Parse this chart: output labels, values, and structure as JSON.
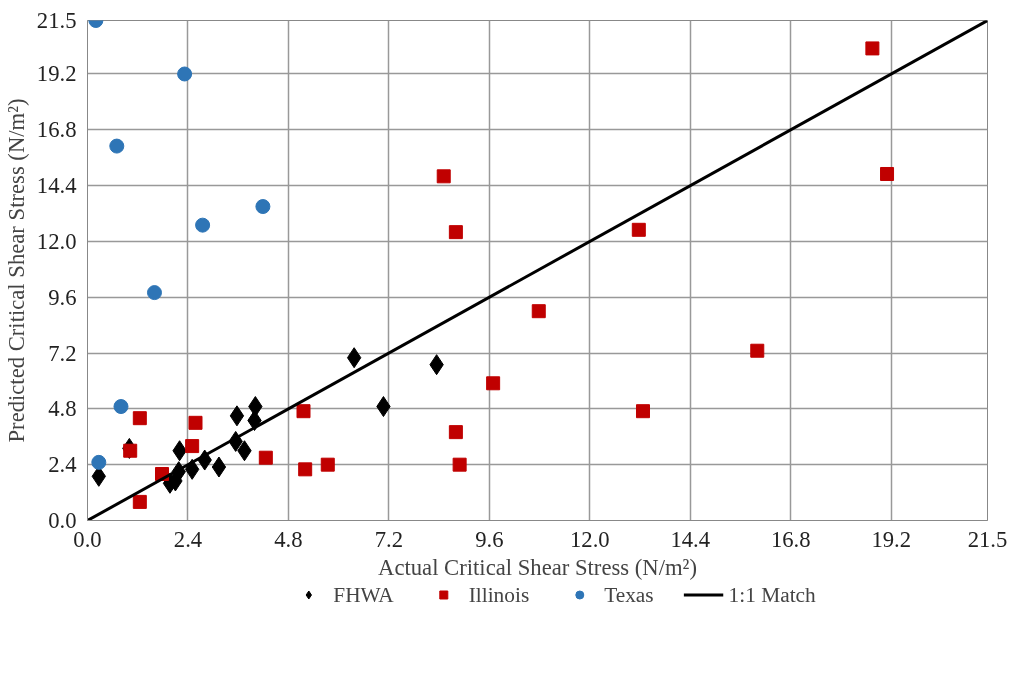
{
  "chart_data": {
    "type": "scatter",
    "xlabel": "Actual Critical Shear Stress (N/m²)",
    "ylabel": "Predicted Critical Shear Stress (N/m²)",
    "xlim": [
      0,
      21.5
    ],
    "ylim": [
      0,
      21.5
    ],
    "xticks": [
      {
        "value": 0,
        "label": "0.0"
      },
      2.4,
      4.8,
      7.2,
      9.6,
      {
        "value": 12,
        "label": "12.0"
      },
      14.4,
      16.8,
      19.2,
      21.5
    ],
    "yticks": [
      {
        "value": 0,
        "label": "0.0"
      },
      2.4,
      4.8,
      7.2,
      9.6,
      {
        "value": 12,
        "label": "12.0"
      },
      14.4,
      16.8,
      19.2,
      21.5
    ],
    "grid": true,
    "legend": "bottom",
    "series": [
      {
        "name": "FHWA",
        "marker": "diamond",
        "color": "#000000",
        "x": [
          0.27,
          1.0,
          2.2,
          1.97,
          2.1,
          2.18,
          2.5,
          2.8,
          3.14,
          3.57,
          4.01,
          3.99,
          3.54,
          3.75,
          6.37,
          7.07,
          8.34
        ],
        "values": [
          1.9,
          3.1,
          3.0,
          1.6,
          1.7,
          2.1,
          2.2,
          2.6,
          2.3,
          4.5,
          4.9,
          4.3,
          3.4,
          3.0,
          7.0,
          4.9,
          6.7
        ]
      },
      {
        "name": "Illinois",
        "marker": "square",
        "color": "#c00000",
        "x": [
          1.25,
          1.02,
          1.25,
          1.78,
          2.5,
          2.58,
          4.26,
          5.16,
          5.2,
          5.74,
          8.51,
          8.8,
          8.8,
          8.89,
          9.69,
          10.78,
          13.17,
          13.27,
          16.0,
          18.75,
          19.1
        ],
        "values": [
          4.4,
          3.0,
          0.8,
          2.0,
          3.2,
          4.2,
          2.7,
          4.7,
          2.2,
          2.4,
          14.8,
          12.4,
          3.8,
          2.4,
          5.9,
          9.0,
          12.5,
          4.7,
          7.3,
          20.3,
          14.9
        ]
      },
      {
        "name": "Texas",
        "marker": "circle",
        "color": "#2e75b6",
        "x": [
          0.2,
          2.32,
          0.7,
          4.19,
          2.75,
          1.6,
          0.8,
          0.27
        ],
        "values": [
          21.5,
          19.2,
          16.1,
          13.5,
          12.7,
          9.8,
          4.9,
          2.5
        ]
      },
      {
        "name": "1:1 Match",
        "type": "line",
        "line_style": "solid",
        "color": "#000000",
        "x": [
          0,
          21.5
        ],
        "values": [
          0,
          21.5
        ]
      }
    ]
  }
}
